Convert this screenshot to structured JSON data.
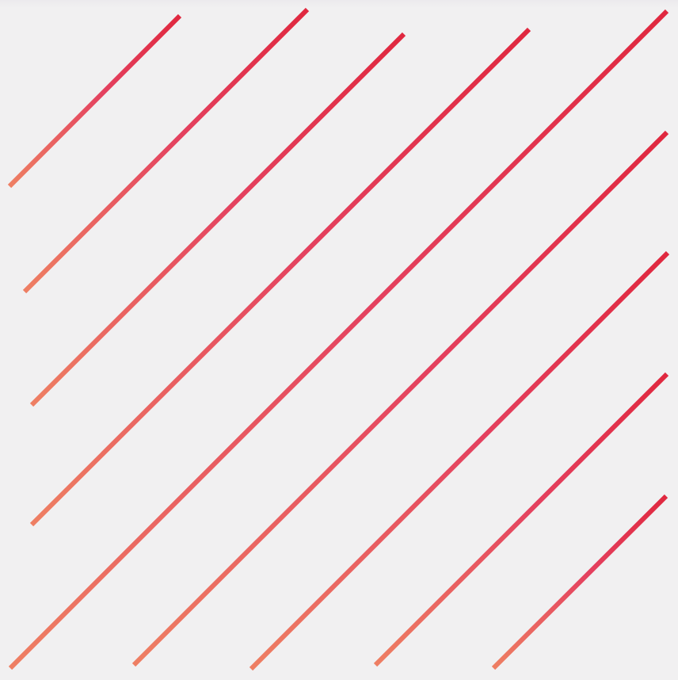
{
  "pattern": {
    "line_count": 9,
    "orientation": "diagonal-rising",
    "gradient_start_color": "#ee7f63",
    "gradient_mid_color": "#e4415f",
    "gradient_end_color": "#e0283f",
    "background_color": "#f1f0f1"
  }
}
